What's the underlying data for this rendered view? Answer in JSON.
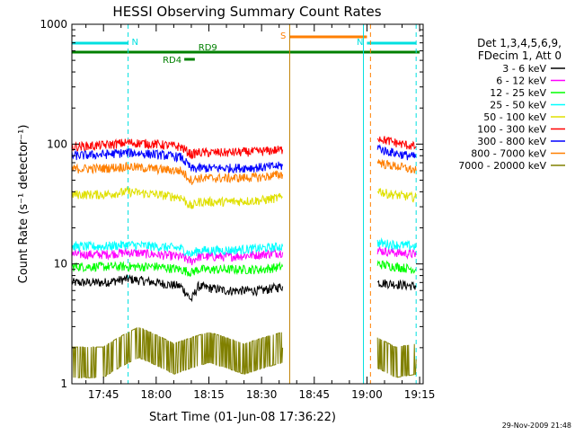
{
  "chart_data": {
    "type": "line",
    "title": "HESSI Observing Summary Count Rates",
    "xlabel": "Start Time (01-Jun-08 17:36:22)",
    "ylabel": "Count Rate (s⁻¹ detector⁻¹)",
    "x_scale": "time",
    "y_scale": "log",
    "xlim": [
      "17:36",
      "19:16"
    ],
    "ylim": [
      1,
      1000
    ],
    "x_ticks": [
      "17:45",
      "18:00",
      "18:15",
      "18:30",
      "18:45",
      "19:00",
      "19:15"
    ],
    "y_ticks": [
      "1",
      "10",
      "100",
      "1000"
    ],
    "legend_position": "right",
    "legend_header": [
      "Det 1,3,4,5,6,9,",
      "FDecim 1, Att 0"
    ],
    "timestamp": "29-Nov-2009 21:48",
    "flags": [
      {
        "label": "N",
        "color": "#00e0e0",
        "segments": [
          [
            "17:36",
            "17:52"
          ],
          [
            "19:00",
            "19:14"
          ]
        ]
      },
      {
        "label": "S",
        "color": "#ff7f00",
        "segments": [
          [
            "18:38",
            "19:00"
          ]
        ]
      },
      {
        "label": "RD9",
        "color": "#008000",
        "segments": [
          [
            "17:36",
            "19:15"
          ]
        ]
      },
      {
        "label": "RD4",
        "color": "#008000",
        "segments": [
          [
            "18:08",
            "18:11"
          ]
        ]
      }
    ],
    "vertical_markers": [
      {
        "time": "17:36",
        "color": "#00e0e0",
        "style": "solid"
      },
      {
        "time": "17:52",
        "color": "#00e0e0",
        "style": "dashed"
      },
      {
        "time": "18:38",
        "color": "#c08000",
        "style": "solid"
      },
      {
        "time": "18:59",
        "color": "#00e0e0",
        "style": "solid"
      },
      {
        "time": "19:01",
        "color": "#ff7f00",
        "style": "dashed"
      },
      {
        "time": "19:14",
        "color": "#00e0e0",
        "style": "dashed"
      }
    ],
    "series": [
      {
        "name": "3 - 6 keV",
        "color": "#000000",
        "segments": [
          {
            "x": [
              "17:36",
              "17:45",
              "17:52",
              "18:00",
              "18:07",
              "18:10",
              "18:12",
              "18:20",
              "18:30",
              "18:36"
            ],
            "y": [
              7,
              7,
              7.5,
              7,
              6.5,
              5,
              6.5,
              6,
              6,
              6.5
            ]
          },
          {
            "x": [
              "19:03",
              "19:08",
              "19:14"
            ],
            "y": [
              7,
              6.8,
              6.5
            ]
          }
        ]
      },
      {
        "name": "6 - 12 keV",
        "color": "#ff00ff",
        "segments": [
          {
            "x": [
              "17:36",
              "17:45",
              "17:52",
              "18:00",
              "18:07",
              "18:10",
              "18:12",
              "18:20",
              "18:30",
              "18:36"
            ],
            "y": [
              12,
              12,
              12.5,
              12,
              11.5,
              10.5,
              11.5,
              11.5,
              12,
              12.5
            ]
          },
          {
            "x": [
              "19:03",
              "19:08",
              "19:14"
            ],
            "y": [
              13,
              12.5,
              12
            ]
          }
        ]
      },
      {
        "name": "12 - 25 keV",
        "color": "#00ff00",
        "segments": [
          {
            "x": [
              "17:36",
              "17:45",
              "17:52",
              "18:00",
              "18:07",
              "18:10",
              "18:12",
              "18:20",
              "18:30",
              "18:36"
            ],
            "y": [
              9.5,
              9.5,
              9.5,
              9.5,
              9,
              8.5,
              9,
              9,
              9,
              9.5
            ]
          },
          {
            "x": [
              "19:03",
              "19:08",
              "19:14"
            ],
            "y": [
              10,
              9.5,
              9
            ]
          }
        ]
      },
      {
        "name": "25 - 50 keV",
        "color": "#00ffff",
        "segments": [
          {
            "x": [
              "17:36",
              "17:45",
              "17:52",
              "18:00",
              "18:07",
              "18:10",
              "18:12",
              "18:20",
              "18:30",
              "18:36"
            ],
            "y": [
              14,
              14,
              14.5,
              14,
              13.5,
              12,
              13,
              13,
              13.5,
              14
            ]
          },
          {
            "x": [
              "19:03",
              "19:08",
              "19:14"
            ],
            "y": [
              15,
              14.5,
              14
            ]
          }
        ]
      },
      {
        "name": "50 - 100 keV",
        "color": "#e0e000",
        "segments": [
          {
            "x": [
              "17:36",
              "17:45",
              "17:52",
              "18:00",
              "18:07",
              "18:10",
              "18:12",
              "18:20",
              "18:30",
              "18:36"
            ],
            "y": [
              38,
              38,
              40,
              38,
              36,
              30,
              33,
              33,
              34,
              36
            ]
          },
          {
            "x": [
              "19:03",
              "19:05",
              "19:10",
              "19:14"
            ],
            "y": [
              42,
              39,
              37,
              36
            ]
          }
        ]
      },
      {
        "name": "100 - 300 keV",
        "color": "#ff0000",
        "segments": [
          {
            "x": [
              "17:36",
              "17:45",
              "17:52",
              "18:00",
              "18:07",
              "18:10",
              "18:12",
              "18:20",
              "18:30",
              "18:36"
            ],
            "y": [
              95,
              98,
              103,
              100,
              95,
              82,
              85,
              85,
              87,
              90
            ]
          },
          {
            "x": [
              "19:03",
              "19:05",
              "19:10",
              "19:14"
            ],
            "y": [
              115,
              108,
              100,
              95
            ]
          }
        ]
      },
      {
        "name": "300 - 800 keV",
        "color": "#0000ff",
        "segments": [
          {
            "x": [
              "17:36",
              "17:45",
              "17:52",
              "18:00",
              "18:07",
              "18:10",
              "18:12",
              "18:20",
              "18:30",
              "18:36"
            ],
            "y": [
              80,
              82,
              85,
              82,
              78,
              62,
              63,
              63,
              64,
              66
            ]
          },
          {
            "x": [
              "19:03",
              "19:05",
              "19:10",
              "19:14"
            ],
            "y": [
              95,
              88,
              82,
              78
            ]
          }
        ]
      },
      {
        "name": "800 - 7000 keV",
        "color": "#ff7f00",
        "segments": [
          {
            "x": [
              "17:36",
              "17:45",
              "17:52",
              "18:00",
              "18:07",
              "18:10",
              "18:12",
              "18:20",
              "18:30",
              "18:36"
            ],
            "y": [
              62,
              63,
              65,
              62,
              60,
              50,
              52,
              52,
              53,
              56
            ]
          },
          {
            "x": [
              "19:03",
              "19:05",
              "19:10",
              "19:14"
            ],
            "y": [
              72,
              68,
              64,
              60
            ]
          }
        ]
      },
      {
        "name": "7000 - 20000 keV",
        "color": "#808000",
        "segments": [
          {
            "x": [
              "17:36",
              "17:45",
              "17:55",
              "18:05",
              "18:15",
              "18:25",
              "18:36"
            ],
            "y": [
              1.5,
              1.5,
              2.2,
              1.6,
              2,
              1.6,
              2
            ]
          },
          {
            "x": [
              "19:03",
              "19:08",
              "19:14"
            ],
            "y": [
              1.8,
              1.5,
              1.6
            ]
          }
        ]
      }
    ]
  }
}
